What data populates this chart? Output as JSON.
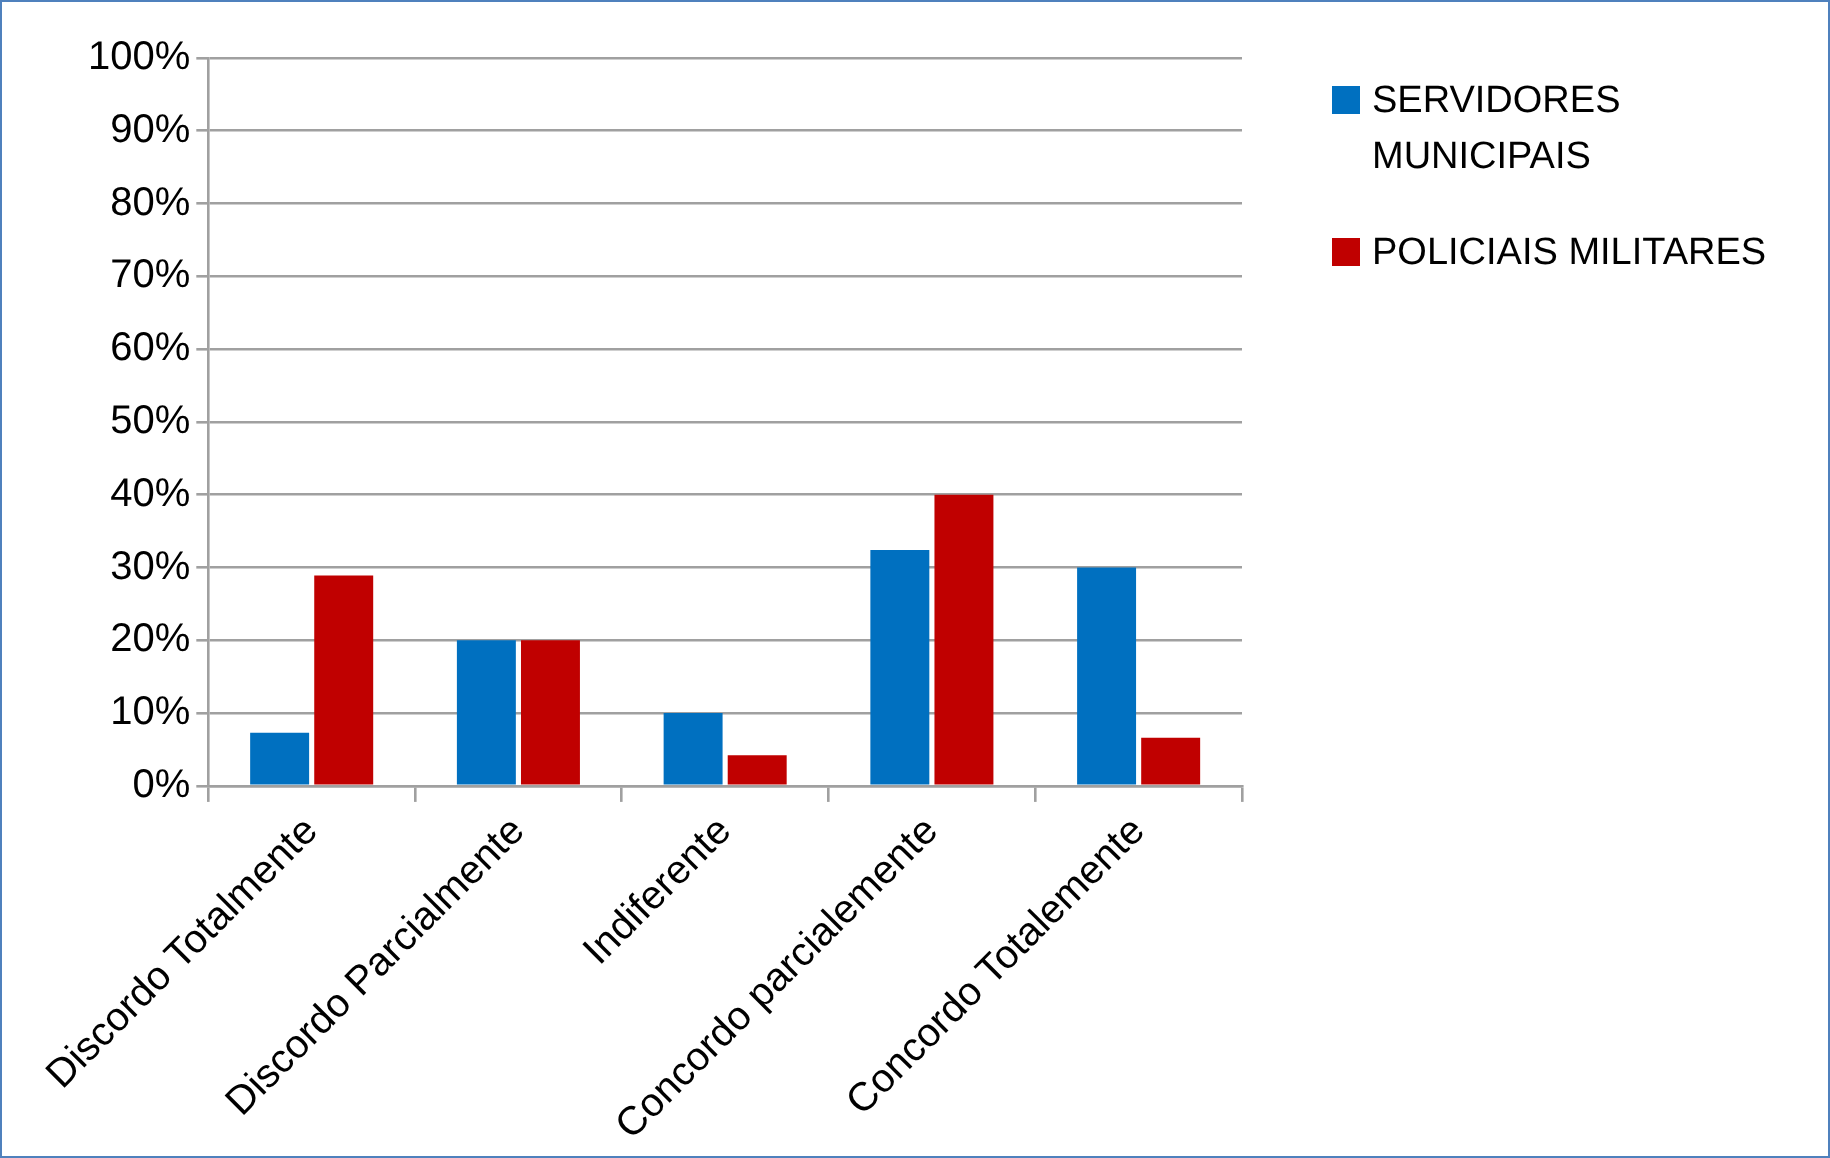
{
  "chart_data": {
    "type": "bar",
    "categories": [
      "Discordo Totalmente",
      "Discordo Parcialmente",
      "Indiferente",
      "Concordo parcialemente",
      "Concordo Totalemente"
    ],
    "series": [
      {
        "name": "SERVIDORES MUNICIPAIS",
        "color": "#0070c0",
        "values": [
          7.3,
          20,
          10,
          32.4,
          30
        ]
      },
      {
        "name": "POLICIAIS MILITARES",
        "color": "#c00000",
        "values": [
          28.9,
          20,
          4.2,
          40,
          6.6
        ]
      }
    ],
    "ylim": [
      0,
      100
    ],
    "yticks": [
      {
        "value": 0,
        "label": "0%"
      },
      {
        "value": 10,
        "label": "10%"
      },
      {
        "value": 20,
        "label": "20%"
      },
      {
        "value": 30,
        "label": "30%"
      },
      {
        "value": 40,
        "label": "40%"
      },
      {
        "value": 50,
        "label": "50%"
      },
      {
        "value": 60,
        "label": "60%"
      },
      {
        "value": 70,
        "label": "70%"
      },
      {
        "value": 80,
        "label": "80%"
      },
      {
        "value": 90,
        "label": "90%"
      },
      {
        "value": 100,
        "label": "100%"
      }
    ],
    "grid": "y",
    "legend": "right"
  }
}
